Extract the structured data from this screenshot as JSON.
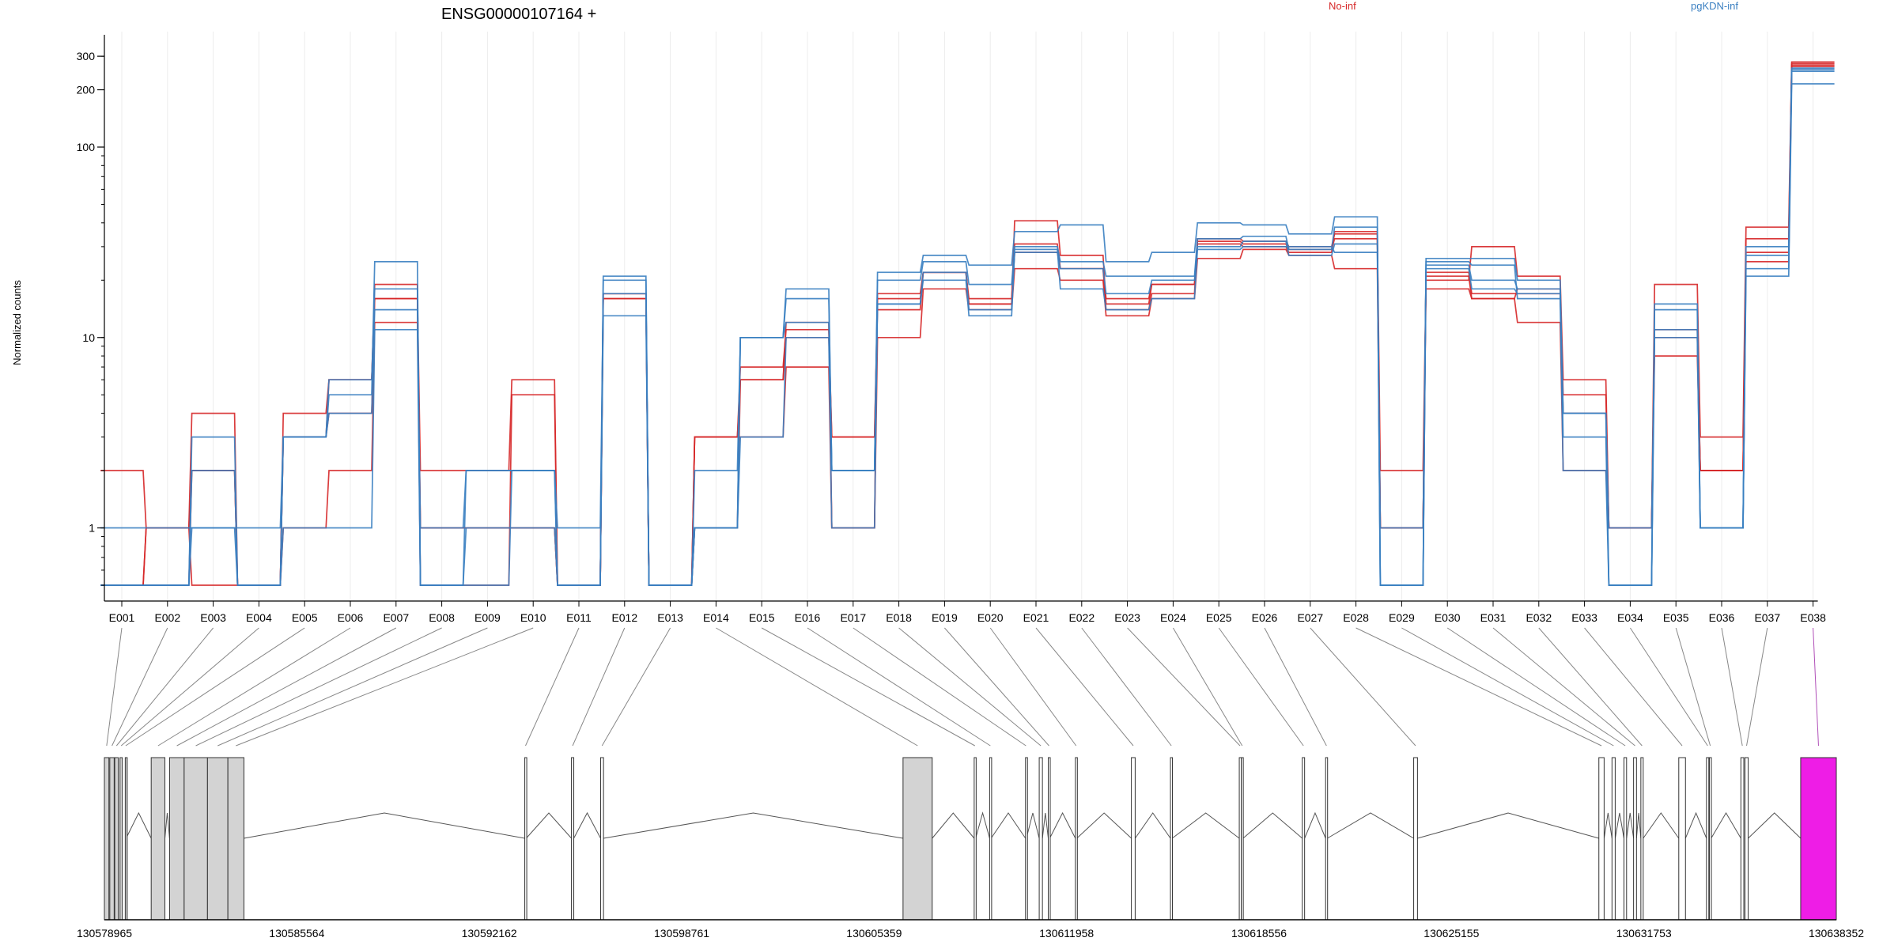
{
  "chart_data": {
    "type": "line",
    "title": "ENSG00000107164 +",
    "ylabel": "Normalized counts",
    "xlabel": "",
    "y_scale": "log",
    "ylim": [
      0.5,
      350
    ],
    "y_ticks": [
      1,
      10,
      100,
      200,
      300
    ],
    "y_tick_labels": [
      "1",
      "10",
      "100",
      "200",
      "300"
    ],
    "grid": "vertical",
    "legend": [
      {
        "name": "No-inf",
        "color": "#d62728"
      },
      {
        "name": "pgKDN-inf",
        "color": "#3a7fc1"
      }
    ],
    "legend_placement": "top",
    "categories": [
      "E001",
      "E002",
      "E003",
      "E004",
      "E005",
      "E006",
      "E007",
      "E008",
      "E009",
      "E010",
      "E011",
      "E012",
      "E013",
      "E014",
      "E015",
      "E016",
      "E017",
      "E018",
      "E019",
      "E020",
      "E021",
      "E022",
      "E023",
      "E024",
      "E025",
      "E026",
      "E027",
      "E028",
      "E029",
      "E030",
      "E031",
      "E032",
      "E033",
      "E034",
      "E035",
      "E036",
      "E037",
      "E038"
    ],
    "series": [
      {
        "group": "No-inf",
        "color": "#d62728",
        "values": [
          2,
          1,
          0.5,
          0.5,
          1,
          2,
          12,
          1,
          1,
          1,
          0.5,
          17,
          0.5,
          3,
          3,
          7,
          1,
          10,
          18,
          14,
          23,
          20,
          13,
          16,
          26,
          29,
          27,
          23,
          1,
          18,
          16,
          12,
          2,
          1,
          8,
          2,
          28,
          270
        ]
      },
      {
        "group": "No-inf",
        "color": "#d62728",
        "values": [
          0.5,
          1,
          4,
          0.5,
          4,
          6,
          16,
          2,
          2,
          6,
          0.5,
          16,
          0.5,
          3,
          7,
          11,
          3,
          14,
          22,
          15,
          41,
          27,
          15,
          19,
          31,
          30,
          28,
          36,
          2,
          20,
          30,
          21,
          6,
          1,
          19,
          3,
          38,
          280
        ]
      },
      {
        "group": "No-inf",
        "color": "#d62728",
        "values": [
          0.5,
          0.5,
          2,
          0.5,
          3,
          6,
          19,
          0.5,
          0.5,
          5,
          0.5,
          17,
          0.5,
          1,
          6,
          12,
          1,
          17,
          22,
          16,
          31,
          23,
          16,
          19,
          33,
          32,
          30,
          35,
          1,
          22,
          17,
          17,
          5,
          1,
          11,
          2,
          25,
          265
        ]
      },
      {
        "group": "No-inf",
        "color": "#d62728",
        "values": [
          0.5,
          1,
          2,
          0.5,
          3,
          4,
          16,
          1,
          1,
          1,
          0.5,
          16,
          0.5,
          3,
          6,
          10,
          3,
          16,
          22,
          15,
          28,
          23,
          14,
          17,
          32,
          31,
          29,
          33,
          1,
          21,
          16,
          18,
          4,
          1,
          10,
          2,
          33,
          275
        ]
      },
      {
        "group": "pgKDN-inf",
        "color": "#3a7fc1",
        "values": [
          0.5,
          0.5,
          2,
          0.5,
          3,
          6,
          18,
          0.5,
          2,
          2,
          0.5,
          21,
          0.5,
          2,
          10,
          16,
          2,
          20,
          25,
          19,
          30,
          25,
          21,
          21,
          33,
          34,
          29,
          38,
          0.5,
          24,
          20,
          18,
          3,
          0.5,
          15,
          1,
          30,
          260
        ]
      },
      {
        "group": "pgKDN-inf",
        "color": "#3a7fc1",
        "values": [
          1,
          1,
          1,
          1,
          3,
          4,
          14,
          1,
          2,
          2,
          1,
          17,
          0.5,
          1,
          10,
          12,
          2,
          15,
          22,
          14,
          28,
          23,
          17,
          20,
          30,
          32,
          27,
          31,
          1,
          23,
          18,
          17,
          4,
          1,
          11,
          1,
          23,
          255
        ]
      },
      {
        "group": "pgKDN-inf",
        "color": "#3a7fc1",
        "values": [
          0.5,
          0.5,
          3,
          0.5,
          3,
          5,
          25,
          0.5,
          0.5,
          2,
          0.5,
          20,
          0.5,
          1,
          10,
          18,
          2,
          22,
          27,
          24,
          36,
          39,
          25,
          28,
          40,
          39,
          35,
          43,
          0.5,
          26,
          26,
          20,
          4,
          0.5,
          14,
          1,
          27,
          250
        ]
      },
      {
        "group": "pgKDN-inf",
        "color": "#3a7fc1",
        "values": [
          0.5,
          0.5,
          1,
          0.5,
          1,
          1,
          11,
          0.5,
          1,
          1,
          0.5,
          13,
          0.5,
          1,
          3,
          10,
          1,
          15,
          20,
          13,
          29,
          18,
          14,
          16,
          29,
          30,
          30,
          28,
          0.5,
          25,
          24,
          16,
          2,
          0.5,
          10,
          1,
          21,
          215
        ]
      }
    ]
  },
  "gene_model": {
    "coordinate_labels": [
      "130578965",
      "130585564",
      "130592162",
      "130598761",
      "130605359",
      "130611958",
      "130618556",
      "130625155",
      "130631753",
      "130638352"
    ],
    "genomic_start": 130578965,
    "genomic_end": 130638352,
    "highlight_exon": "E038",
    "colors": {
      "exon_fill": "#d3d3d3",
      "highlight_fill": "#ee1de6",
      "connector": "#888888",
      "highlight_connector": "#b04fb8"
    }
  }
}
